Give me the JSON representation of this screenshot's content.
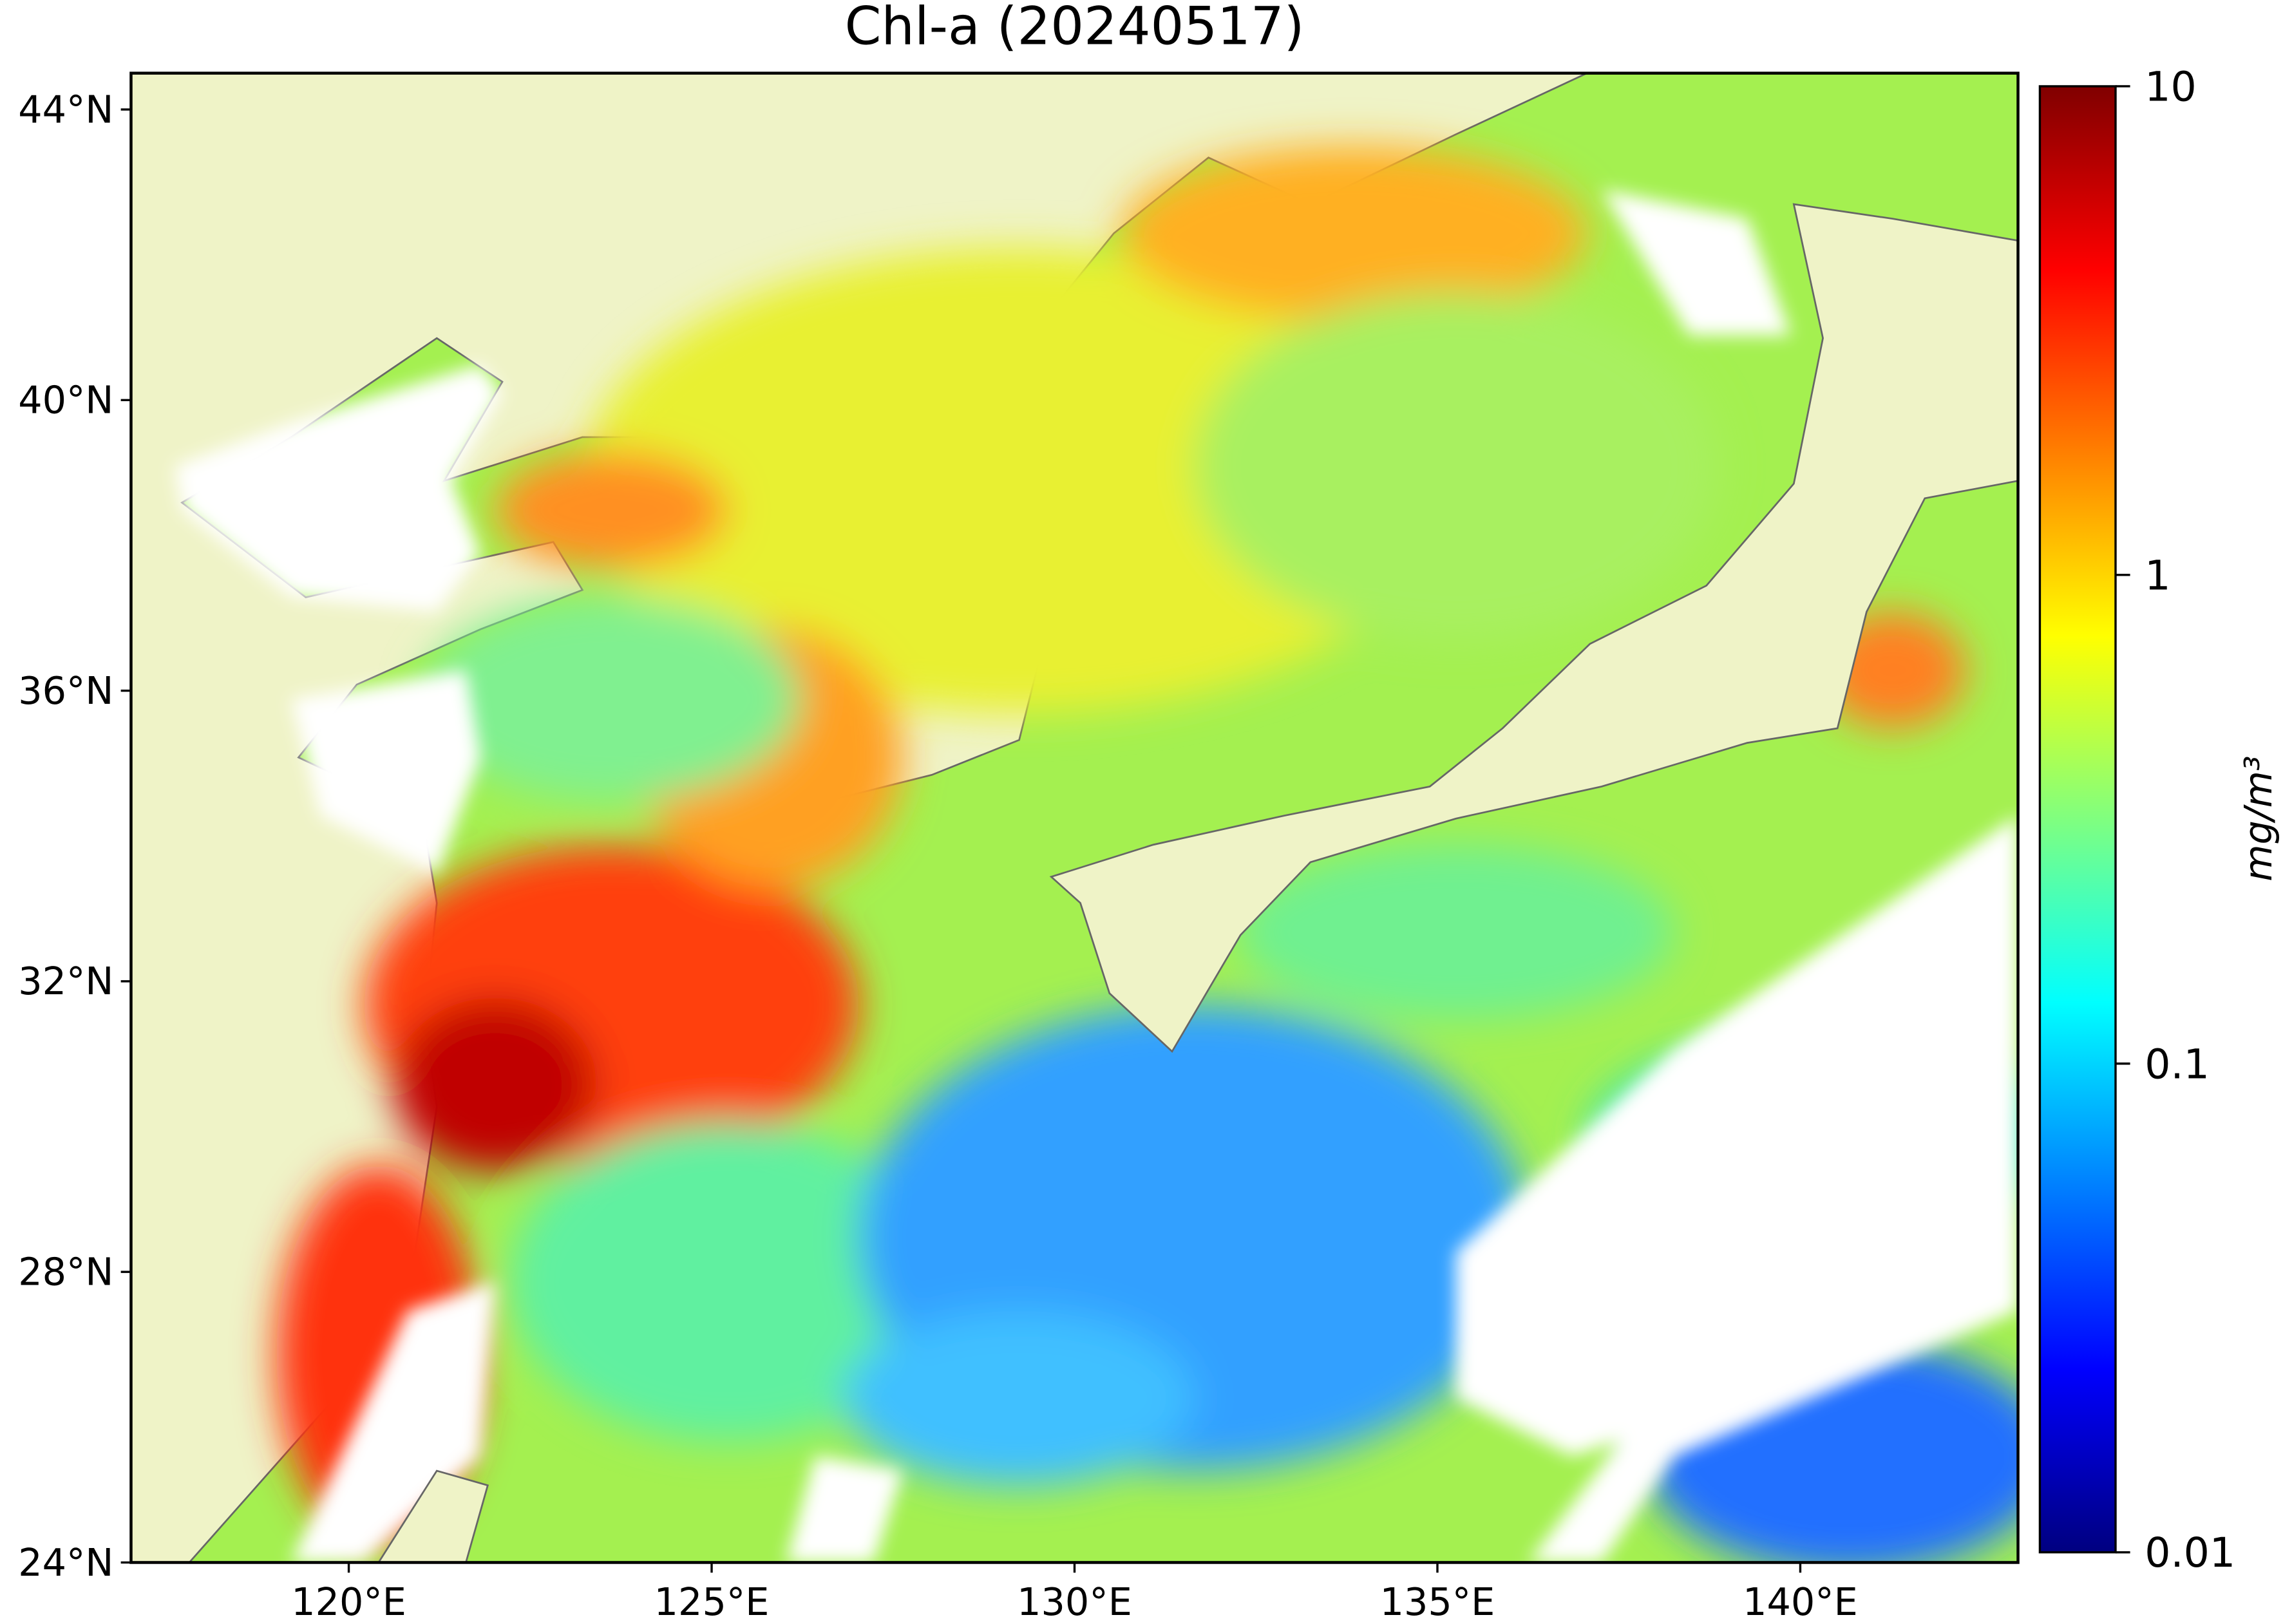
{
  "chart_data": {
    "type": "map",
    "title": "Chl-a (20240517)",
    "xlim": [
      117,
      143
    ],
    "ylim": [
      24,
      44.5
    ],
    "xticks": [
      {
        "value": 120,
        "label": "120°E"
      },
      {
        "value": 125,
        "label": "125°E"
      },
      {
        "value": 130,
        "label": "130°E"
      },
      {
        "value": 135,
        "label": "135°E"
      },
      {
        "value": 140,
        "label": "140°E"
      }
    ],
    "yticks": [
      {
        "value": 24,
        "label": "24°N"
      },
      {
        "value": 28,
        "label": "28°N"
      },
      {
        "value": 32,
        "label": "32°N"
      },
      {
        "value": 36,
        "label": "36°N"
      },
      {
        "value": 40,
        "label": "40°N"
      },
      {
        "value": 44,
        "label": "44°N"
      }
    ],
    "colorbar": {
      "label": "mg/m³",
      "scale": "log",
      "lim": [
        0.01,
        10
      ],
      "ticks": [
        0.01,
        0.1,
        1,
        10
      ],
      "colormap": "jet"
    }
  }
}
